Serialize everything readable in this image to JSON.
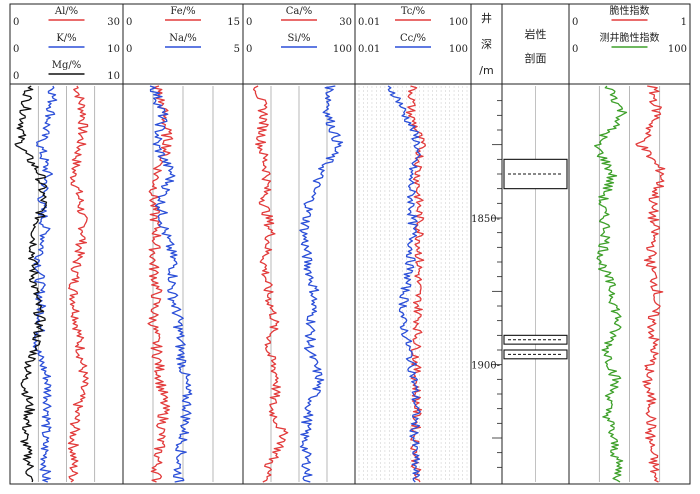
{
  "chart_data": {
    "type": "line",
    "depth_axis": {
      "label_chars": [
        "井",
        "深",
        "/m"
      ],
      "range": [
        1805,
        1940
      ],
      "ticks": [
        1850,
        1900
      ],
      "tick_labels": [
        "1850-",
        "1900-"
      ]
    },
    "tracks": [
      {
        "id": "track-al-k-mg",
        "curves": [
          {
            "name": "Al/%",
            "color": "#e23b3b",
            "range": [
              0,
              30
            ],
            "range_labels": [
              "0",
              "30"
            ],
            "depth": [
              1805,
              1815,
              1825,
              1835,
              1845,
              1855,
              1865,
              1875,
              1885,
              1895,
              1905,
              1915,
              1925,
              1935
            ],
            "values": [
              18,
              20,
              19,
              17,
              19,
              20,
              18,
              17,
              18,
              19,
              20,
              18,
              17,
              17
            ]
          },
          {
            "name": "K/%",
            "color": "#2b4fd8",
            "range": [
              0,
              10
            ],
            "range_labels": [
              "0",
              "10"
            ],
            "depth": [
              1805,
              1815,
              1825,
              1835,
              1845,
              1855,
              1865,
              1875,
              1885,
              1895,
              1905,
              1915,
              1925,
              1935
            ],
            "values": [
              3.8,
              3.5,
              2.5,
              3.2,
              2.6,
              3.0,
              2.4,
              2.5,
              2.6,
              2.2,
              3.2,
              3.3,
              2.9,
              3.0
            ]
          },
          {
            "name": "Mg/%",
            "color": "#111111",
            "range": [
              0,
              10
            ],
            "range_labels": [
              "0",
              "10"
            ],
            "depth": [
              1805,
              1815,
              1825,
              1835,
              1845,
              1855,
              1865,
              1875,
              1885,
              1895,
              1905,
              1915,
              1925,
              1935
            ],
            "values": [
              1.5,
              1.0,
              0.5,
              2.5,
              2.8,
              2.0,
              1.8,
              2.0,
              2.5,
              2.0,
              1.0,
              1.5,
              1.0,
              1.5
            ]
          }
        ]
      },
      {
        "id": "track-fe-na",
        "curves": [
          {
            "name": "Fe/%",
            "color": "#e23b3b",
            "range": [
              0,
              15
            ],
            "range_labels": [
              "0",
              "15"
            ],
            "depth": [
              1805,
              1815,
              1825,
              1835,
              1845,
              1855,
              1865,
              1875,
              1885,
              1895,
              1905,
              1915,
              1925,
              1935
            ],
            "values": [
              4,
              5,
              5.5,
              4,
              3.5,
              4,
              3.5,
              4,
              3.5,
              4,
              4.5,
              5,
              4.5,
              4
            ]
          },
          {
            "name": "Na/%",
            "color": "#2b4fd8",
            "range": [
              0,
              5
            ],
            "range_labels": [
              "0",
              "5"
            ],
            "depth": [
              1805,
              1815,
              1825,
              1835,
              1845,
              1855,
              1865,
              1875,
              1885,
              1895,
              1905,
              1915,
              1925,
              1935
            ],
            "values": [
              1.2,
              1.6,
              1.3,
              2.0,
              1.5,
              1.7,
              2.1,
              2.0,
              2.3,
              2.4,
              2.6,
              2.7,
              2.5,
              2.3
            ]
          }
        ]
      },
      {
        "id": "track-ca-si",
        "curves": [
          {
            "name": "Ca/%",
            "color": "#e23b3b",
            "range": [
              0,
              30
            ],
            "range_labels": [
              "0",
              "30"
            ],
            "depth": [
              1805,
              1815,
              1825,
              1835,
              1845,
              1855,
              1865,
              1875,
              1885,
              1895,
              1905,
              1915,
              1925,
              1935
            ],
            "values": [
              3,
              5,
              4,
              6,
              5,
              7,
              5,
              6,
              8,
              6,
              9,
              7,
              11,
              6
            ]
          },
          {
            "name": "Si/%",
            "color": "#2b4fd8",
            "range": [
              0,
              100
            ],
            "range_labels": [
              "0",
              "100"
            ],
            "depth": [
              1805,
              1815,
              1825,
              1835,
              1845,
              1855,
              1865,
              1875,
              1885,
              1895,
              1905,
              1915,
              1925,
              1935
            ],
            "values": [
              80,
              78,
              88,
              70,
              60,
              55,
              58,
              65,
              62,
              60,
              70,
              60,
              55,
              58
            ]
          }
        ]
      },
      {
        "id": "track-tc-cc",
        "log_grid": true,
        "curves": [
          {
            "name": "Tc/%",
            "color": "#e23b3b",
            "range": [
              0.01,
              100
            ],
            "range_labels": [
              "0.01",
              "100"
            ],
            "depth": [
              1805,
              1815,
              1825,
              1835,
              1845,
              1855,
              1865,
              1875,
              1885,
              1895,
              1905,
              1915,
              1925,
              1935
            ],
            "values": [
              1.0,
              0.8,
              2.0,
              1.5,
              1.6,
              1.8,
              1.7,
              1.5,
              1.6,
              1.3,
              1.3,
              1.4,
              1.2,
              1.3
            ]
          },
          {
            "name": "Cc/%",
            "color": "#2b4fd8",
            "range": [
              0.01,
              100
            ],
            "range_labels": [
              "0.01",
              "100"
            ],
            "depth": [
              1805,
              1815,
              1825,
              1835,
              1845,
              1855,
              1865,
              1875,
              1885,
              1895,
              1905,
              1915,
              1925,
              1935
            ],
            "values": [
              0.1,
              0.5,
              1.5,
              0.8,
              0.9,
              1.0,
              0.8,
              0.5,
              0.4,
              0.7,
              1.1,
              1.3,
              1.1,
              1.2
            ]
          }
        ]
      },
      {
        "id": "track-lithology",
        "header": [
          "岩性",
          "剖面"
        ],
        "intervals": [
          [
            1830,
            1840
          ],
          [
            1890,
            1893
          ],
          [
            1895,
            1898
          ]
        ]
      },
      {
        "id": "track-brittleness",
        "curves": [
          {
            "name": "脆性指数",
            "color": "#e23b3b",
            "range": [
              0,
              1
            ],
            "range_labels": [
              "0",
              "1"
            ],
            "depth": [
              1805,
              1815,
              1825,
              1835,
              1845,
              1855,
              1865,
              1875,
              1885,
              1895,
              1905,
              1915,
              1925,
              1935
            ],
            "values": [
              0.7,
              0.75,
              0.6,
              0.8,
              0.7,
              0.72,
              0.68,
              0.75,
              0.7,
              0.72,
              0.65,
              0.7,
              0.68,
              0.72
            ]
          },
          {
            "name": "测井脆性指数",
            "color": "#3ea02a",
            "range": [
              0,
              100
            ],
            "range_labels": [
              "0",
              "100"
            ],
            "depth": [
              1805,
              1815,
              1825,
              1835,
              1845,
              1855,
              1865,
              1875,
              1885,
              1895,
              1905,
              1915,
              1925,
              1935
            ],
            "values": [
              32,
              45,
              20,
              35,
              25,
              30,
              25,
              35,
              40,
              30,
              38,
              30,
              35,
              40
            ]
          }
        ]
      }
    ]
  }
}
